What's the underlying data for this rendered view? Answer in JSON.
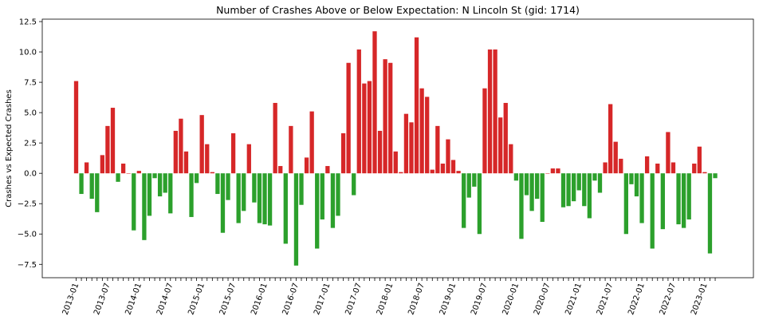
{
  "chart_data": {
    "type": "bar",
    "title": "Number of Crashes Above or Below Expectation: N Lincoln St (gid: 1714)",
    "xlabel": "",
    "ylabel": "Crashes vs Expected Crashes",
    "ylim": [
      -8.6,
      12.7
    ],
    "yticks": [
      "−7.5",
      "−5.0",
      "−2.5",
      "0.0",
      "2.5",
      "5.0",
      "7.5",
      "10.0",
      "12.5"
    ],
    "ytick_values": [
      -7.5,
      -5.0,
      -2.5,
      0.0,
      2.5,
      5.0,
      7.5,
      10.0,
      12.5
    ],
    "xtick_labels": [
      "2013-01",
      "2013-07",
      "2014-01",
      "2014-07",
      "2015-01",
      "2015-07",
      "2016-01",
      "2016-07",
      "2017-01",
      "2017-07",
      "2018-01",
      "2018-07",
      "2019-01",
      "2019-07",
      "2020-01",
      "2020-07",
      "2021-01",
      "2021-07",
      "2022-01",
      "2022-07",
      "2023-01"
    ],
    "start_month": "2013-01",
    "colors": {
      "positive": "#d62728",
      "negative": "#2ca02c"
    },
    "grid": false,
    "values": [
      7.6,
      -1.7,
      0.9,
      -2.1,
      -3.2,
      1.5,
      3.9,
      5.4,
      -0.7,
      0.8,
      0.0,
      -4.7,
      0.2,
      -5.5,
      -3.5,
      -0.4,
      -1.9,
      -1.6,
      -3.3,
      3.5,
      4.5,
      1.8,
      -3.6,
      -0.8,
      4.8,
      2.4,
      0.1,
      -1.7,
      -4.9,
      -2.2,
      3.3,
      -4.1,
      -3.1,
      2.4,
      -2.4,
      -4.1,
      -4.2,
      -4.3,
      5.8,
      0.6,
      -5.8,
      3.9,
      -7.6,
      -2.6,
      1.3,
      5.1,
      -6.2,
      -3.8,
      0.6,
      -4.5,
      -3.5,
      3.3,
      9.1,
      -1.8,
      10.2,
      7.4,
      7.6,
      11.7,
      3.5,
      9.4,
      9.1,
      1.8,
      0.1,
      4.9,
      4.2,
      11.2,
      7.0,
      6.3,
      0.3,
      3.9,
      0.8,
      2.8,
      1.1,
      0.2,
      -4.5,
      -2.0,
      -1.1,
      -5.0,
      7.0,
      10.2,
      10.2,
      4.6,
      5.8,
      2.4,
      -0.6,
      -5.4,
      -1.8,
      -3.1,
      -2.1,
      -4.0,
      0.0,
      0.4,
      0.4,
      -2.8,
      -2.7,
      -2.3,
      -1.4,
      -2.7,
      -3.7,
      -0.6,
      -1.6,
      0.9,
      5.7,
      2.6,
      1.2,
      -5.0,
      -0.9,
      -1.9,
      -4.1,
      1.4,
      -6.2,
      0.8,
      -4.6,
      3.4,
      0.9,
      -4.2,
      -4.5,
      -3.8,
      0.8,
      2.2,
      0.1,
      -6.6,
      -0.4
    ]
  }
}
